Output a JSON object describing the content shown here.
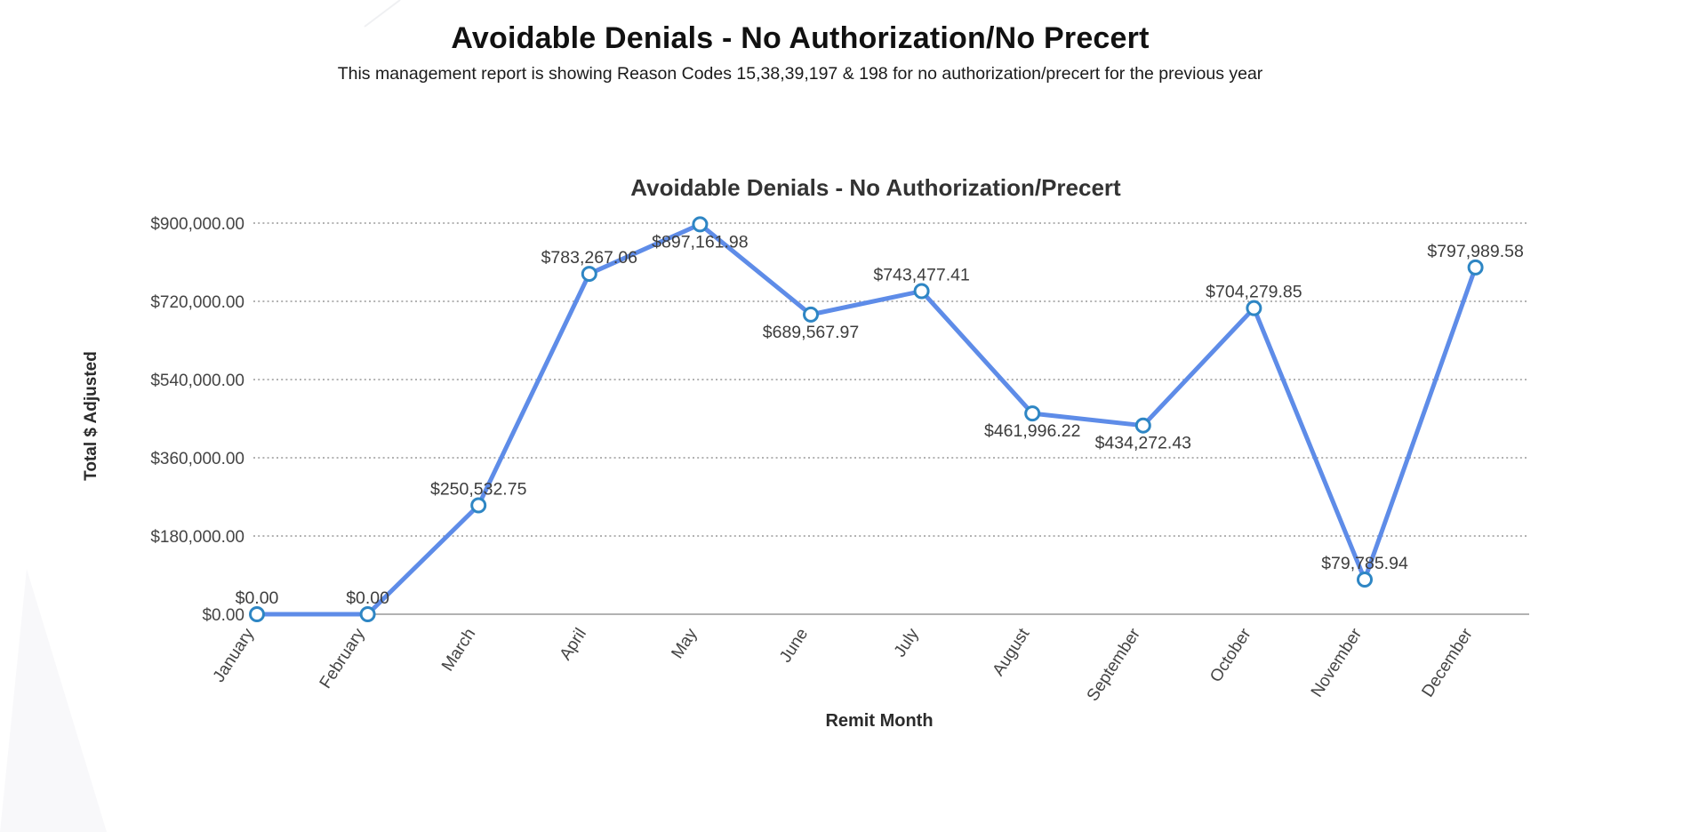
{
  "header": {
    "title": "Avoidable Denials - No Authorization/No Precert",
    "subtitle": "This management report is showing Reason Codes 15,38,39,197 & 198 for no authorization/precert for the previous year"
  },
  "chart_data": {
    "type": "line",
    "title": "Avoidable Denials - No Authorization/Precert",
    "xlabel": "Remit Month",
    "ylabel": "Total $ Adjusted",
    "categories": [
      "January",
      "February",
      "March",
      "April",
      "May",
      "June",
      "July",
      "August",
      "September",
      "October",
      "November",
      "December"
    ],
    "series": [
      {
        "name": "Total $ Adjusted",
        "values": [
          0,
          0,
          250532.75,
          783267.06,
          897161.98,
          689567.97,
          743477.41,
          461996.22,
          434272.43,
          704279.85,
          79785.94,
          797989.58
        ]
      }
    ],
    "point_labels": [
      "$0.00",
      "$0.00",
      "$250,532.75",
      "$783,267.06",
      "$897,161.98",
      "$689,567.97",
      "$743,477.41",
      "$461,996.22",
      "$434,272.43",
      "$704,279.85",
      "$79,785.94",
      "$797,989.58"
    ],
    "label_positions": [
      "above",
      "above",
      "above",
      "above",
      "below",
      "below",
      "above",
      "below",
      "below",
      "above",
      "above",
      "above"
    ],
    "y_ticks": [
      {
        "value": 0,
        "label": "$0.00"
      },
      {
        "value": 180000,
        "label": "$180,000.00"
      },
      {
        "value": 360000,
        "label": "$360,000.00"
      },
      {
        "value": 540000,
        "label": "$540,000.00"
      },
      {
        "value": 720000,
        "label": "$720,000.00"
      },
      {
        "value": 900000,
        "label": "$900,000.00"
      }
    ],
    "ylim": [
      0,
      900000
    ],
    "grid": "horizontal-dotted",
    "legend": "none",
    "colors": {
      "line": "#5e8ce8",
      "marker_stroke": "#2e86c4",
      "marker_fill": "#ffffff",
      "grid": "#999999",
      "axis": "#999999",
      "point_label": "#3d3d3d",
      "tick_label": "#444444",
      "chart_title": "#333333"
    }
  }
}
